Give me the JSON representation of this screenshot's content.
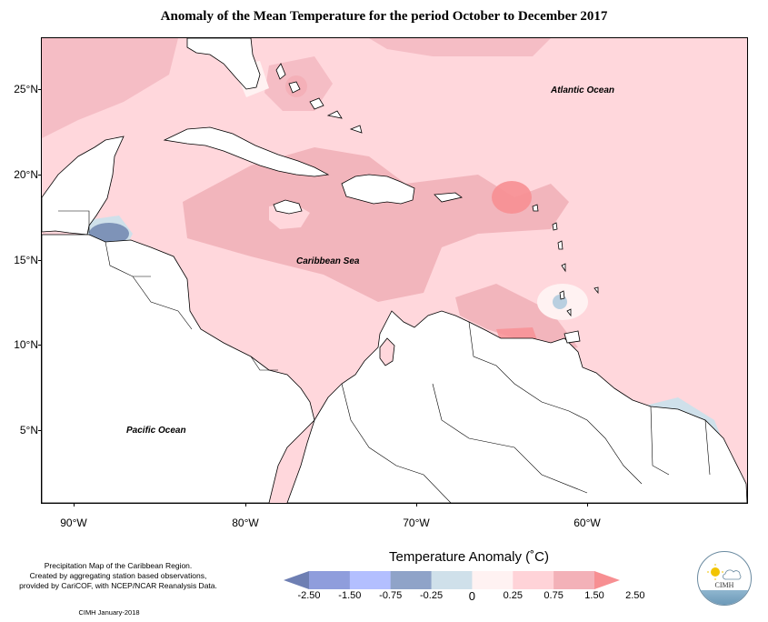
{
  "title": "Anomaly of the Mean Temperature for the period October to December 2017",
  "latitude_labels": [
    "25°N",
    "20°N",
    "15°N",
    "10°N",
    "5°N"
  ],
  "longitude_labels": [
    "90°W",
    "80°W",
    "70°W",
    "60°W"
  ],
  "ocean_labels": {
    "atlantic": "Atlantic Ocean",
    "caribbean": "Caribbean Sea",
    "pacific": "Pacific Ocean"
  },
  "footer": {
    "line1": "Precipitation Map of the Caribbean Region.",
    "line2": "Created by aggregating station based observations,",
    "line3": "provided by CariCOF, with NCEP/NCAR Reanalysis Data.",
    "credit": "CIMH January-2018"
  },
  "legend": {
    "title": "Temperature Anomaly (˚C)",
    "labels": [
      "-2.50",
      "-1.50",
      "-0.75",
      "-0.25",
      "0",
      "0.25",
      "0.75",
      "1.50",
      "2.50"
    ],
    "colors": [
      "#6e7fb3",
      "#8f9ddc",
      "#b3bfff",
      "#8fa3c8",
      "#cfe0ea",
      "#fff2f2",
      "#ffd3d8",
      "#f3b1b8",
      "#f78f92"
    ],
    "range": [
      -2.5,
      2.5
    ]
  },
  "logo": {
    "text": "CIMH"
  }
}
